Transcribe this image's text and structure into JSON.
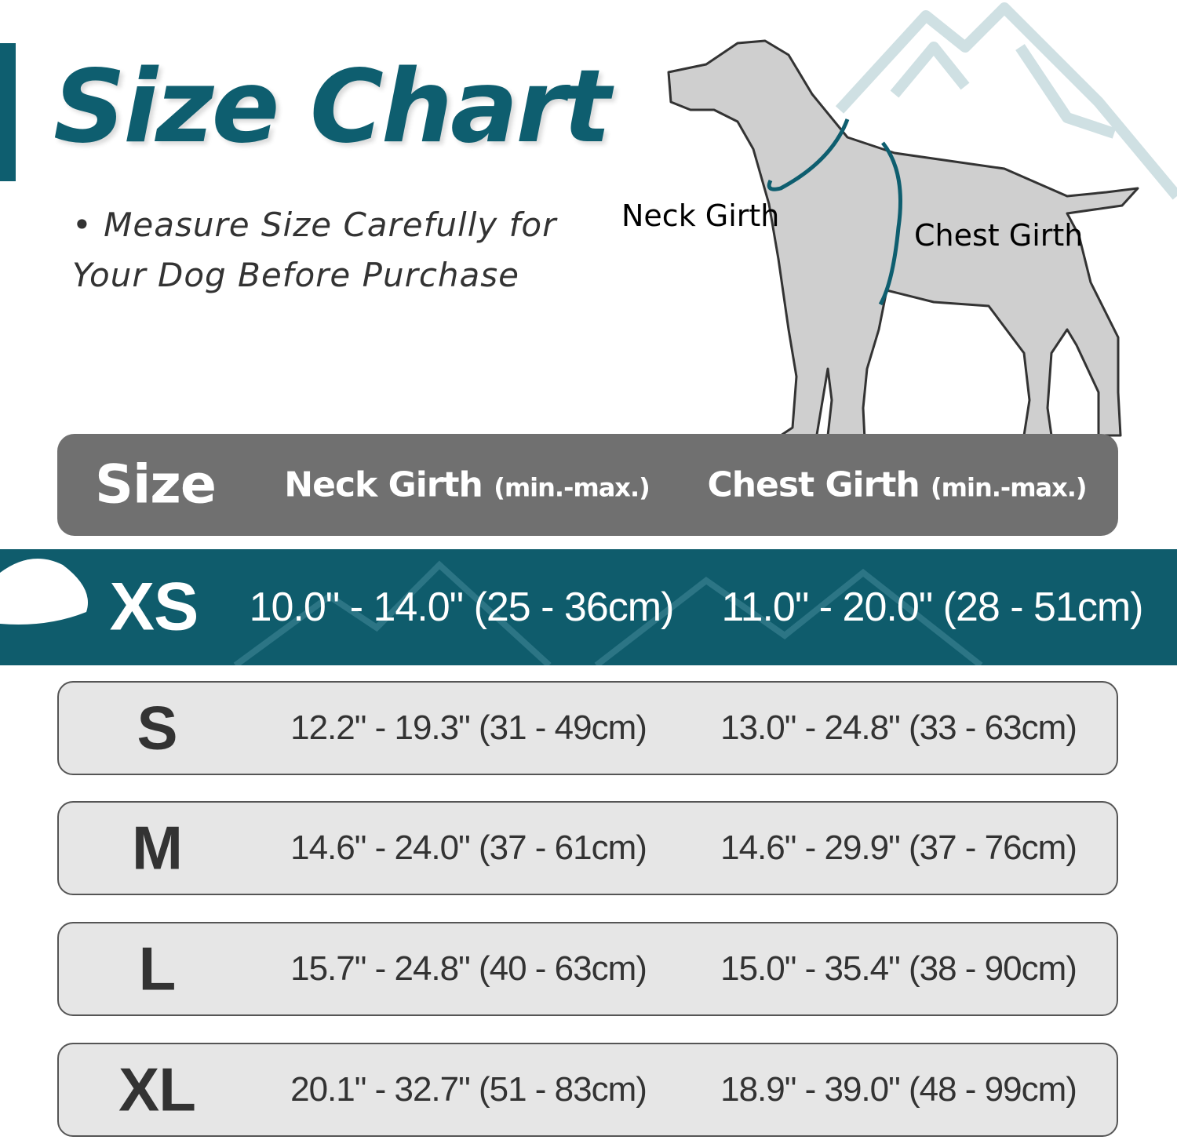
{
  "title": "Size Chart",
  "note": "• Measure Size Carefully for Your Dog Before Purchase",
  "diagram": {
    "neck_label": "Neck Girth",
    "chest_label": "Chest Girth"
  },
  "colors": {
    "brand": "#0e5e6f",
    "header_bg": "#707070",
    "row_bg": "#e6e6e6",
    "mountains": "#cfe0e3",
    "dog": "#cfcfcf"
  },
  "table": {
    "headers": {
      "size": "Size",
      "neck": "Neck Girth",
      "neck_unit": "(min.-max.)",
      "chest": "Chest Girth",
      "chest_unit": "(min.-max.)"
    },
    "highlighted": {
      "size": "XS",
      "neck": "10.0\" - 14.0\" (25 - 36cm)",
      "chest": "11.0\" - 20.0\" (28 - 51cm)"
    },
    "rows": [
      {
        "size": "S",
        "neck": "12.2\" - 19.3\" (31 - 49cm)",
        "chest": "13.0\" - 24.8\" (33 - 63cm)"
      },
      {
        "size": "M",
        "neck": "14.6\" - 24.0\" (37 - 61cm)",
        "chest": "14.6\" - 29.9\" (37 - 76cm)"
      },
      {
        "size": "L",
        "neck": "15.7\" - 24.8\" (40 - 63cm)",
        "chest": "15.0\" - 35.4\" (38 - 90cm)"
      },
      {
        "size": "XL",
        "neck": "20.1\" - 32.7\" (51 - 83cm)",
        "chest": "18.9\" - 39.0\" (48 - 99cm)"
      }
    ]
  }
}
